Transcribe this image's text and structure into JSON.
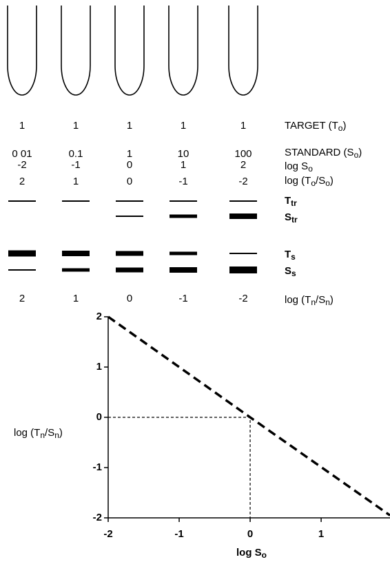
{
  "diagram": {
    "rows": [
      {
        "label": [
          "TARGET (T",
          "o",
          ")"
        ],
        "values": [
          "1",
          "1",
          "1",
          "1",
          "1"
        ]
      },
      {
        "label": [
          "STANDARD (S",
          "o",
          ")"
        ],
        "values": [
          "0 01",
          "0.1",
          "1",
          "10",
          "100"
        ]
      },
      {
        "label": [
          "log S",
          "o"
        ],
        "values": [
          "-2",
          "-1",
          "0",
          "1",
          "2"
        ]
      },
      {
        "label": [
          "log (T",
          "o",
          "/S",
          "o",
          ")"
        ],
        "values": [
          "2",
          "1",
          "0",
          "-1",
          "-2"
        ]
      },
      {
        "label": [
          "T",
          "tr"
        ]
      },
      {
        "label": [
          "S",
          "tr"
        ]
      },
      {
        "label": [
          "T",
          "s"
        ]
      },
      {
        "label": [
          "S",
          "s"
        ]
      },
      {
        "label": [
          "log (T",
          "n",
          "/S",
          "n",
          ")"
        ],
        "values": [
          "2",
          "1",
          "0",
          "-1",
          "-2"
        ]
      }
    ]
  },
  "chart_data": {
    "type": "line",
    "xlabel": [
      "log S",
      "o"
    ],
    "ylabel": [
      "log (T",
      "n",
      "/S",
      "n",
      ")"
    ],
    "x": [
      -2,
      0,
      1.97
    ],
    "series": [
      {
        "color": "#000000",
        "values": [
          2,
          0,
          -1.95
        ]
      }
    ],
    "reference_point": [
      0,
      0
    ],
    "xlim": [
      -2,
      1.97
    ],
    "ylim": [
      -2,
      2
    ],
    "xticks": [
      -2,
      -1,
      0,
      1
    ],
    "yticks": [
      -2,
      -1,
      0,
      1,
      2
    ]
  }
}
